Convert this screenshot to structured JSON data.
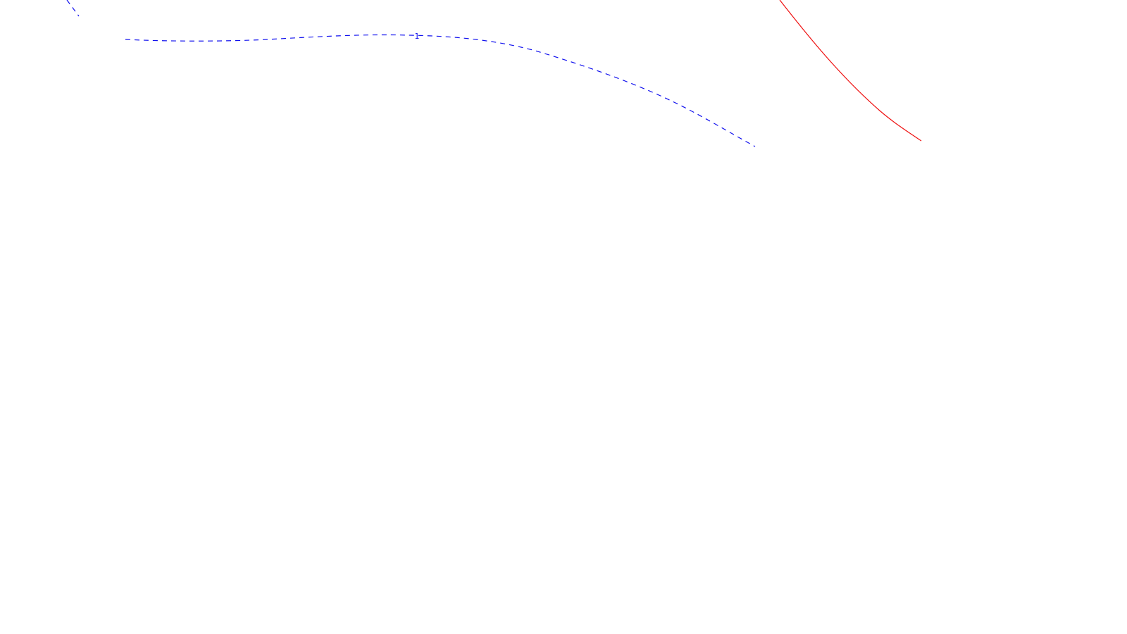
{
  "map": {
    "contour_label": "1",
    "colors": {
      "background": "#ffffff",
      "dashed_contour": "#1010ee",
      "solid_contour": "#ee1010"
    }
  }
}
